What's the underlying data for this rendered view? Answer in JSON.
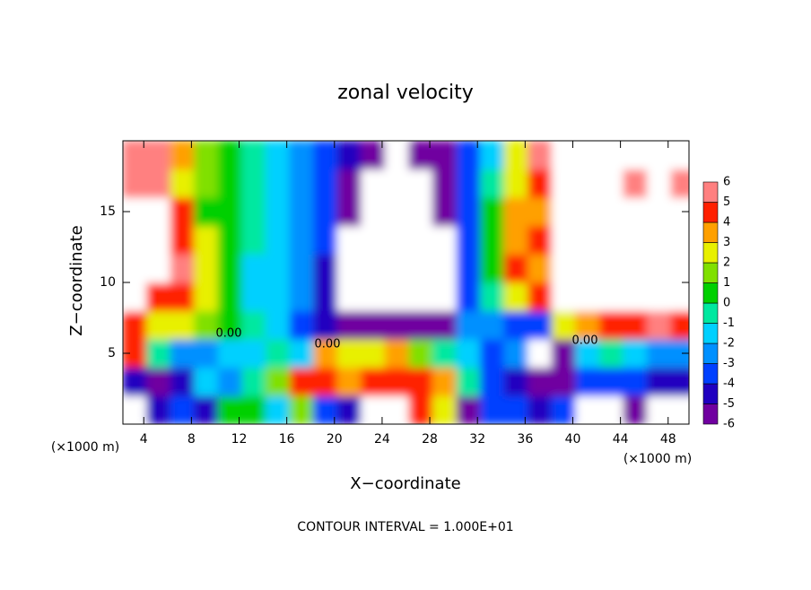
{
  "chart_data": {
    "type": "contour",
    "title": "zonal velocity",
    "x_label": "X−coordinate",
    "y_label": "Z−coordinate",
    "x_unit_labels": [
      "(×1000 m)",
      "(×1000 m)"
    ],
    "footer": "CONTOUR INTERVAL = 1.000E+01",
    "annotations": [
      "0.00",
      "0.00",
      "0.00"
    ],
    "xlim": [
      2.25,
      49.75
    ],
    "ylim": [
      0,
      20
    ],
    "xticks": [
      4,
      8,
      12,
      16,
      20,
      24,
      28,
      32,
      36,
      40,
      44,
      48
    ],
    "yticks": [
      5,
      10,
      15
    ],
    "x": [
      3.25,
      5.25,
      7.25,
      9.25,
      11.25,
      13.25,
      15.25,
      17.25,
      19.25,
      21.25,
      23.25,
      25.25,
      27.25,
      29.25,
      31.25,
      33.25,
      35.25,
      37.25,
      39.25,
      41.25,
      43.25,
      45.25,
      47.25,
      49.25
    ],
    "z": [
      1,
      3,
      5,
      7,
      9,
      11,
      13,
      15,
      17,
      19
    ],
    "values": [
      [
        -7,
        -4,
        -3.5,
        -4,
        0.5,
        1,
        -1,
        2,
        -3,
        -4,
        -7,
        -7,
        5,
        3,
        -5,
        -3,
        -3,
        -4,
        -3,
        -7,
        -7,
        -6,
        -7,
        -7
      ],
      [
        -4,
        -5,
        -4,
        -1.5,
        -2,
        -0.5,
        2,
        5,
        5,
        4,
        5,
        5,
        5,
        4,
        0,
        -3,
        -4,
        -5,
        -5,
        -3,
        -3,
        -3,
        -4,
        -4.5
      ],
      [
        4.5,
        0,
        -2,
        -2,
        -1,
        -1,
        0,
        -1,
        4,
        3,
        3,
        4,
        2,
        0,
        -1.5,
        -3,
        -2,
        -7,
        -5,
        -1,
        0,
        -1,
        -2,
        -2
      ],
      [
        5,
        3,
        3,
        1.5,
        0.2,
        -0.5,
        -1,
        -3,
        -4.5,
        -5,
        -5,
        -5,
        -5.5,
        -5,
        -2.5,
        -2,
        -3,
        -3,
        3,
        3.5,
        5,
        5,
        6,
        5
      ],
      [
        7,
        5,
        5,
        3,
        1,
        -1,
        -1.5,
        -2.5,
        -4.5,
        -6.5,
        -8,
        -8,
        -8,
        -7,
        -3,
        -0.5,
        3,
        5,
        6.5,
        7,
        7,
        7,
        7,
        7
      ],
      [
        8,
        8,
        5.5,
        3,
        0.3,
        -1,
        -1.5,
        -2,
        -4,
        -7,
        -8,
        -8,
        -8,
        -7,
        -3,
        0.5,
        5,
        4,
        7,
        8,
        8,
        7,
        7,
        7
      ],
      [
        7,
        7,
        5,
        2.5,
        0.5,
        -0.8,
        -1.5,
        -2,
        -3.5,
        -7,
        -8,
        -9,
        -8,
        -6.5,
        -3,
        0.5,
        4,
        5,
        7,
        8,
        8,
        8,
        8,
        7.5
      ],
      [
        7,
        7,
        4.5,
        1,
        0.5,
        -0.5,
        -1.5,
        -2,
        -3,
        -5.5,
        -7,
        -8,
        -7,
        -5,
        -3,
        0.5,
        4,
        4,
        7,
        7,
        7,
        7,
        7,
        7
      ],
      [
        6,
        5.5,
        3,
        1.5,
        0.5,
        -0.5,
        -1.5,
        -2,
        -3,
        -5,
        -7,
        -7,
        -7,
        -5,
        -3,
        0,
        3,
        5,
        7,
        7,
        7,
        6,
        6.5,
        5.5
      ],
      [
        6,
        6,
        3.5,
        2,
        0.5,
        -0.5,
        -1.5,
        -2.5,
        -3.5,
        -4.5,
        -5.5,
        -6.5,
        -6,
        -5,
        -3.5,
        -1,
        3,
        6,
        7,
        7,
        7,
        7,
        7,
        7
      ]
    ],
    "colorbar": {
      "levels": [
        -6,
        -5,
        -4,
        -3,
        -2,
        -1,
        0,
        1,
        2,
        3,
        4,
        5,
        6
      ],
      "colors": [
        "#7000a0",
        "#2000c0",
        "#0040ff",
        "#0090ff",
        "#00d0ff",
        "#00e8a0",
        "#00d000",
        "#80e000",
        "#e8f000",
        "#ffa000",
        "#ff2000",
        "#ff8080"
      ]
    }
  }
}
